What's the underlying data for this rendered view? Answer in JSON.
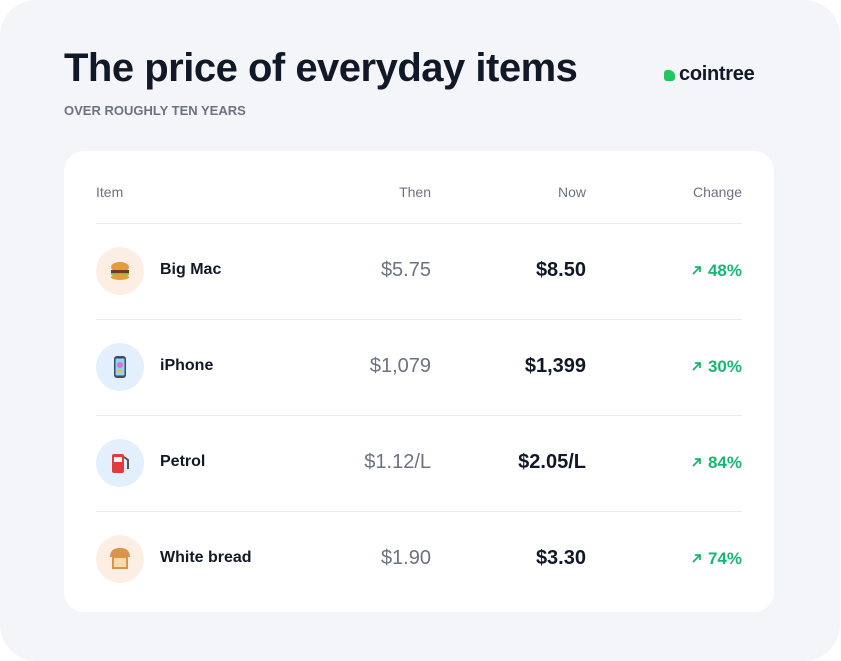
{
  "header": {
    "title": "The price of everyday items",
    "subtitle": "OVER ROUGHLY TEN YEARS",
    "brand": "cointree"
  },
  "table": {
    "columns": [
      "Item",
      "Then",
      "Now",
      "Change"
    ],
    "rows": [
      [
        "Big Mac",
        "$5.75",
        "$8.50",
        "48%"
      ],
      [
        "iPhone",
        "$1,079",
        "$1,399",
        "30%"
      ],
      [
        "Petrol",
        "$1.12/L",
        "$2.05/L",
        "84%"
      ],
      [
        "White bread",
        "$1.90",
        "$3.30",
        "74%"
      ]
    ]
  }
}
